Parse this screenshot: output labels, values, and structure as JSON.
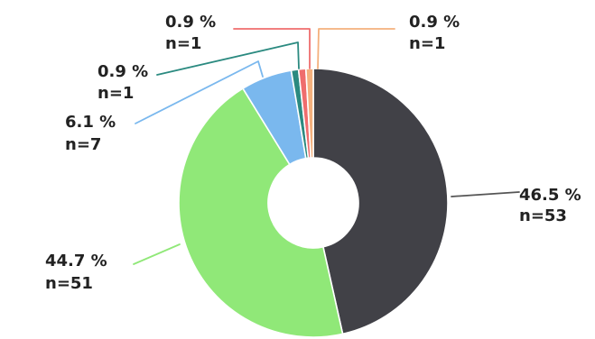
{
  "chart_data": {
    "type": "pie",
    "donut": true,
    "start_angle_degrees": 0,
    "direction": "clockwise",
    "slices": [
      {
        "percent_label": "46.5 %",
        "count_label": "n=53",
        "value": 53,
        "percent": 46.5,
        "color": "#414147"
      },
      {
        "percent_label": "44.7 %",
        "count_label": "n=51",
        "value": 51,
        "percent": 44.7,
        "color": "#90e878"
      },
      {
        "percent_label": "6.1 %",
        "count_label": "n=7",
        "value": 7,
        "percent": 6.1,
        "color": "#7ab8ee"
      },
      {
        "percent_label": "0.9 %",
        "count_label": "n=1",
        "value": 1,
        "percent": 0.9,
        "color": "#2b8a80"
      },
      {
        "percent_label": "0.9 %",
        "count_label": "n=1",
        "value": 1,
        "percent": 0.9,
        "color": "#ef6d6d"
      },
      {
        "percent_label": "0.9 %",
        "count_label": "n=1",
        "value": 1,
        "percent": 0.9,
        "color": "#f4b07d"
      }
    ]
  }
}
